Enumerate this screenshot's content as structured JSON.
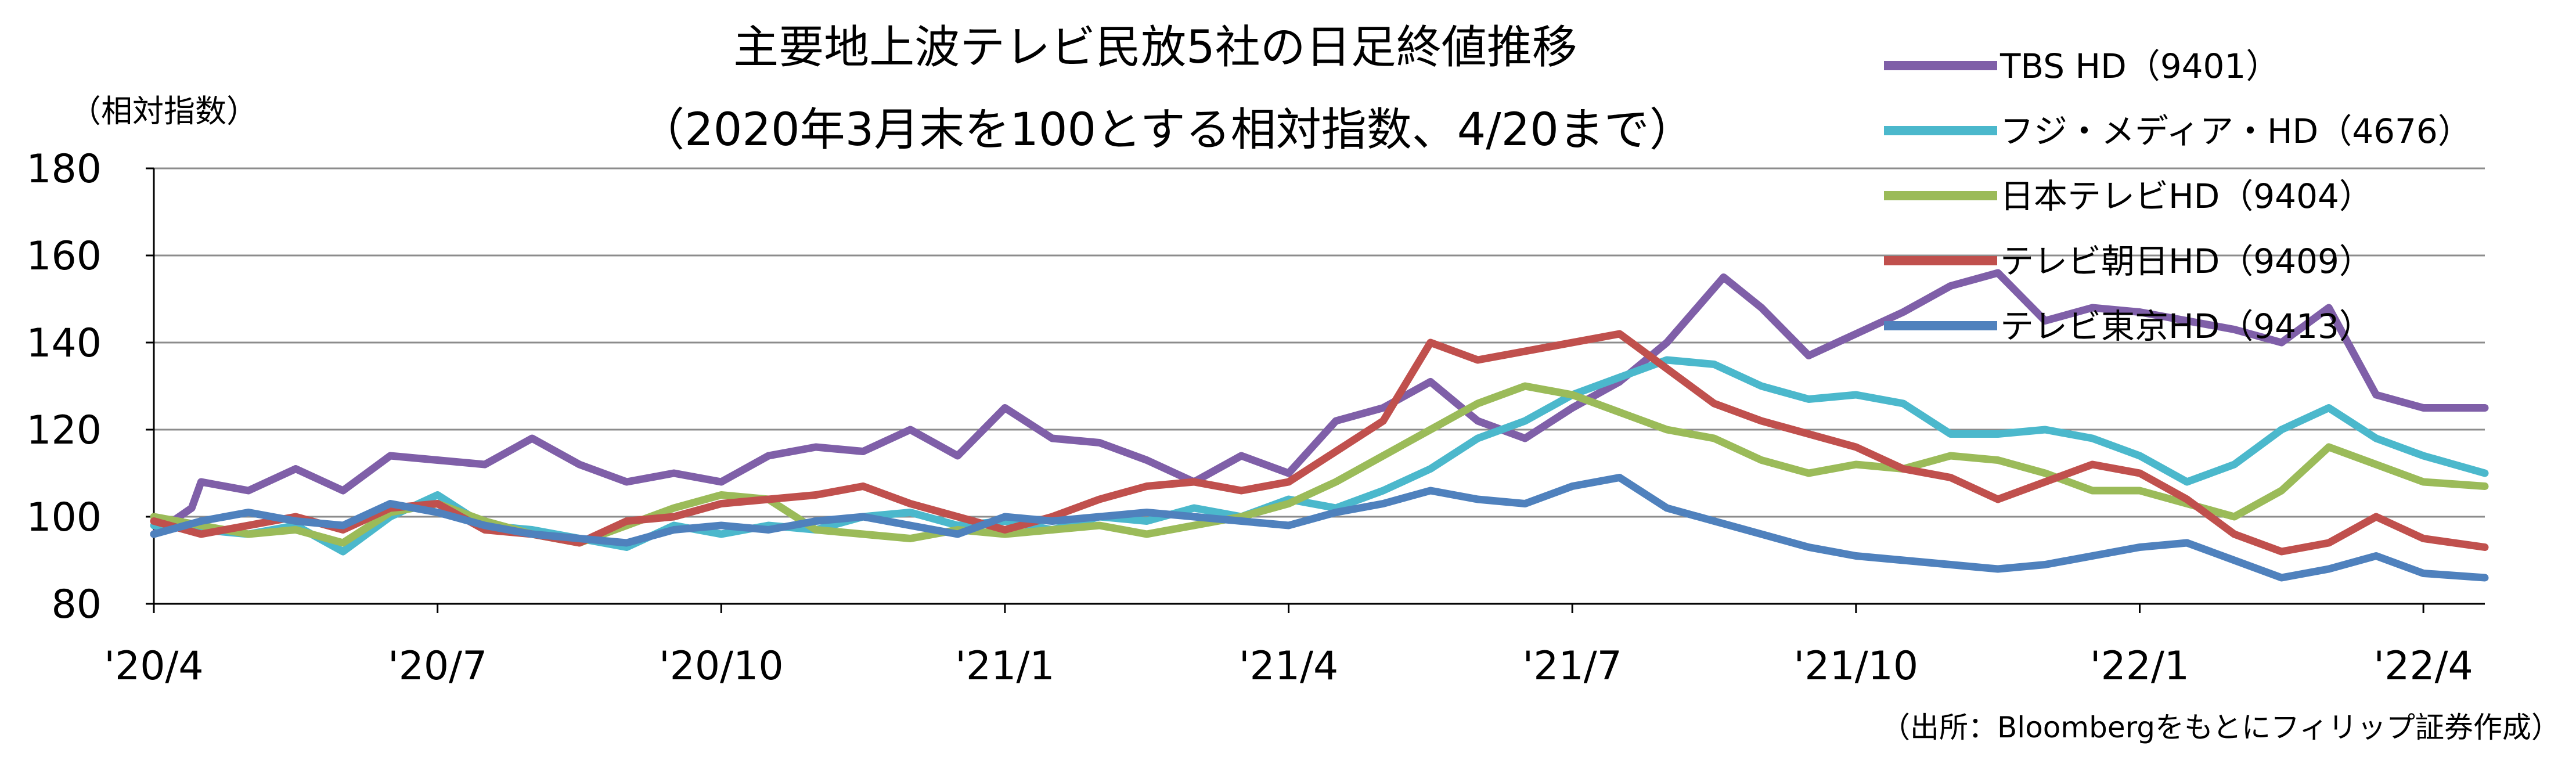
{
  "chart_data": {
    "type": "line",
    "title": "主要地上波テレビ民放5社の日足終値推移",
    "subtitle": "（2020年3月末を100とする相対指数、4/20まで）",
    "ylabel": "（相対指数）",
    "xlabel": "",
    "source": "（出所：Bloombergをもとにフィリップ証券作成）",
    "ylim": [
      80,
      180
    ],
    "yticks": [
      80,
      100,
      120,
      140,
      160,
      180
    ],
    "x_ticks": [
      "'20/4",
      "'20/7",
      "'20/10",
      "'21/1",
      "'21/4",
      "'21/7",
      "'21/10",
      "'22/1",
      "'22/4"
    ],
    "x_range_months": [
      0,
      24.65
    ],
    "grid": true,
    "legend_position": "top-right",
    "series": [
      {
        "name": "TBS HD（9401）",
        "color": "#7F5FA8",
        "points": [
          [
            0,
            96
          ],
          [
            0.4,
            102
          ],
          [
            0.5,
            108
          ],
          [
            1,
            106
          ],
          [
            1.5,
            111
          ],
          [
            2,
            106
          ],
          [
            2.5,
            114
          ],
          [
            3,
            113
          ],
          [
            3.5,
            112
          ],
          [
            4,
            118
          ],
          [
            4.5,
            112
          ],
          [
            5,
            108
          ],
          [
            5.5,
            110
          ],
          [
            6,
            108
          ],
          [
            6.5,
            114
          ],
          [
            7,
            116
          ],
          [
            7.5,
            115
          ],
          [
            8,
            120
          ],
          [
            8.5,
            114
          ],
          [
            9,
            125
          ],
          [
            9.5,
            118
          ],
          [
            10,
            117
          ],
          [
            10.5,
            113
          ],
          [
            11,
            108
          ],
          [
            11.5,
            114
          ],
          [
            12,
            110
          ],
          [
            12.5,
            122
          ],
          [
            13,
            125
          ],
          [
            13.5,
            131
          ],
          [
            14,
            122
          ],
          [
            14.5,
            118
          ],
          [
            15,
            125
          ],
          [
            15.5,
            131
          ],
          [
            16,
            140
          ],
          [
            16.6,
            155
          ],
          [
            17,
            148
          ],
          [
            17.5,
            137
          ],
          [
            18,
            142
          ],
          [
            18.5,
            147
          ],
          [
            19,
            153
          ],
          [
            19.5,
            156
          ],
          [
            20,
            145
          ],
          [
            20.5,
            148
          ],
          [
            21,
            147
          ],
          [
            21.5,
            145
          ],
          [
            22,
            143
          ],
          [
            22.5,
            140
          ],
          [
            23,
            148
          ],
          [
            23.5,
            128
          ],
          [
            24,
            125
          ],
          [
            24.65,
            125
          ]
        ]
      },
      {
        "name": "フジ・メディア・HD（4676）",
        "color": "#4BB8CC",
        "points": [
          [
            0,
            98
          ],
          [
            0.5,
            97
          ],
          [
            1,
            96
          ],
          [
            1.5,
            98
          ],
          [
            2,
            92
          ],
          [
            2.5,
            100
          ],
          [
            3,
            105
          ],
          [
            3.5,
            98
          ],
          [
            4,
            97
          ],
          [
            4.5,
            95
          ],
          [
            5,
            93
          ],
          [
            5.5,
            98
          ],
          [
            6,
            96
          ],
          [
            6.5,
            98
          ],
          [
            7,
            97
          ],
          [
            7.5,
            100
          ],
          [
            8,
            101
          ],
          [
            8.5,
            98
          ],
          [
            9,
            99
          ],
          [
            9.5,
            97
          ],
          [
            10,
            100
          ],
          [
            10.5,
            99
          ],
          [
            11,
            102
          ],
          [
            11.5,
            100
          ],
          [
            12,
            104
          ],
          [
            12.5,
            102
          ],
          [
            13,
            106
          ],
          [
            13.5,
            111
          ],
          [
            14,
            118
          ],
          [
            14.5,
            122
          ],
          [
            15,
            128
          ],
          [
            15.5,
            132
          ],
          [
            16,
            136
          ],
          [
            16.5,
            135
          ],
          [
            17,
            130
          ],
          [
            17.5,
            127
          ],
          [
            18,
            128
          ],
          [
            18.5,
            126
          ],
          [
            19,
            119
          ],
          [
            19.5,
            119
          ],
          [
            20,
            120
          ],
          [
            20.5,
            118
          ],
          [
            21,
            114
          ],
          [
            21.5,
            108
          ],
          [
            22,
            112
          ],
          [
            22.5,
            120
          ],
          [
            23,
            125
          ],
          [
            23.5,
            118
          ],
          [
            24,
            114
          ],
          [
            24.65,
            110
          ]
        ]
      },
      {
        "name": "日本テレビHD（9404）",
        "color": "#9BBB59",
        "points": [
          [
            0,
            100
          ],
          [
            0.5,
            98
          ],
          [
            1,
            96
          ],
          [
            1.5,
            97
          ],
          [
            2,
            94
          ],
          [
            2.5,
            101
          ],
          [
            3,
            103
          ],
          [
            3.5,
            99
          ],
          [
            4,
            96
          ],
          [
            4.5,
            94
          ],
          [
            5,
            98
          ],
          [
            5.5,
            102
          ],
          [
            6,
            105
          ],
          [
            6.5,
            104
          ],
          [
            7,
            97
          ],
          [
            7.5,
            96
          ],
          [
            8,
            95
          ],
          [
            8.5,
            97
          ],
          [
            9,
            96
          ],
          [
            9.5,
            97
          ],
          [
            10,
            98
          ],
          [
            10.5,
            96
          ],
          [
            11,
            98
          ],
          [
            11.5,
            100
          ],
          [
            12,
            103
          ],
          [
            12.5,
            108
          ],
          [
            13,
            114
          ],
          [
            13.5,
            120
          ],
          [
            14,
            126
          ],
          [
            14.5,
            130
          ],
          [
            15,
            128
          ],
          [
            15.5,
            124
          ],
          [
            16,
            120
          ],
          [
            16.5,
            118
          ],
          [
            17,
            113
          ],
          [
            17.5,
            110
          ],
          [
            18,
            112
          ],
          [
            18.5,
            111
          ],
          [
            19,
            114
          ],
          [
            19.5,
            113
          ],
          [
            20,
            110
          ],
          [
            20.5,
            106
          ],
          [
            21,
            106
          ],
          [
            21.5,
            103
          ],
          [
            22,
            100
          ],
          [
            22.5,
            106
          ],
          [
            23,
            116
          ],
          [
            23.5,
            112
          ],
          [
            24,
            108
          ],
          [
            24.65,
            107
          ]
        ]
      },
      {
        "name": "テレビ朝日HD（9409）",
        "color": "#C0504D",
        "points": [
          [
            0,
            99
          ],
          [
            0.5,
            96
          ],
          [
            1,
            98
          ],
          [
            1.5,
            100
          ],
          [
            2,
            97
          ],
          [
            2.5,
            102
          ],
          [
            3,
            103
          ],
          [
            3.5,
            97
          ],
          [
            4,
            96
          ],
          [
            4.5,
            94
          ],
          [
            5,
            99
          ],
          [
            5.5,
            100
          ],
          [
            6,
            103
          ],
          [
            6.5,
            104
          ],
          [
            7,
            105
          ],
          [
            7.5,
            107
          ],
          [
            8,
            103
          ],
          [
            8.5,
            100
          ],
          [
            9,
            97
          ],
          [
            9.5,
            100
          ],
          [
            10,
            104
          ],
          [
            10.5,
            107
          ],
          [
            11,
            108
          ],
          [
            11.5,
            106
          ],
          [
            12,
            108
          ],
          [
            12.5,
            115
          ],
          [
            13,
            122
          ],
          [
            13.5,
            140
          ],
          [
            14,
            136
          ],
          [
            14.5,
            138
          ],
          [
            15,
            140
          ],
          [
            15.5,
            142
          ],
          [
            16,
            134
          ],
          [
            16.5,
            126
          ],
          [
            17,
            122
          ],
          [
            17.5,
            119
          ],
          [
            18,
            116
          ],
          [
            18.5,
            111
          ],
          [
            19,
            109
          ],
          [
            19.5,
            104
          ],
          [
            20,
            108
          ],
          [
            20.5,
            112
          ],
          [
            21,
            110
          ],
          [
            21.5,
            104
          ],
          [
            22,
            96
          ],
          [
            22.5,
            92
          ],
          [
            23,
            94
          ],
          [
            23.5,
            100
          ],
          [
            24,
            95
          ],
          [
            24.65,
            93
          ]
        ]
      },
      {
        "name": "テレビ東京HD（9413）",
        "color": "#4F81BD",
        "points": [
          [
            0,
            96
          ],
          [
            0.5,
            99
          ],
          [
            1,
            101
          ],
          [
            1.5,
            99
          ],
          [
            2,
            98
          ],
          [
            2.5,
            103
          ],
          [
            3,
            101
          ],
          [
            3.5,
            98
          ],
          [
            4,
            96
          ],
          [
            4.5,
            95
          ],
          [
            5,
            94
          ],
          [
            5.5,
            97
          ],
          [
            6,
            98
          ],
          [
            6.5,
            97
          ],
          [
            7,
            99
          ],
          [
            7.5,
            100
          ],
          [
            8,
            98
          ],
          [
            8.5,
            96
          ],
          [
            9,
            100
          ],
          [
            9.5,
            99
          ],
          [
            10,
            100
          ],
          [
            10.5,
            101
          ],
          [
            11,
            100
          ],
          [
            11.5,
            99
          ],
          [
            12,
            98
          ],
          [
            12.5,
            101
          ],
          [
            13,
            103
          ],
          [
            13.5,
            106
          ],
          [
            14,
            104
          ],
          [
            14.5,
            103
          ],
          [
            15,
            107
          ],
          [
            15.5,
            109
          ],
          [
            16,
            102
          ],
          [
            16.5,
            99
          ],
          [
            17,
            96
          ],
          [
            17.5,
            93
          ],
          [
            18,
            91
          ],
          [
            18.5,
            90
          ],
          [
            19,
            89
          ],
          [
            19.5,
            88
          ],
          [
            20,
            89
          ],
          [
            20.5,
            91
          ],
          [
            21,
            93
          ],
          [
            21.5,
            94
          ],
          [
            22,
            90
          ],
          [
            22.5,
            86
          ],
          [
            23,
            88
          ],
          [
            23.5,
            91
          ],
          [
            24,
            87
          ],
          [
            24.65,
            86
          ]
        ]
      }
    ]
  }
}
